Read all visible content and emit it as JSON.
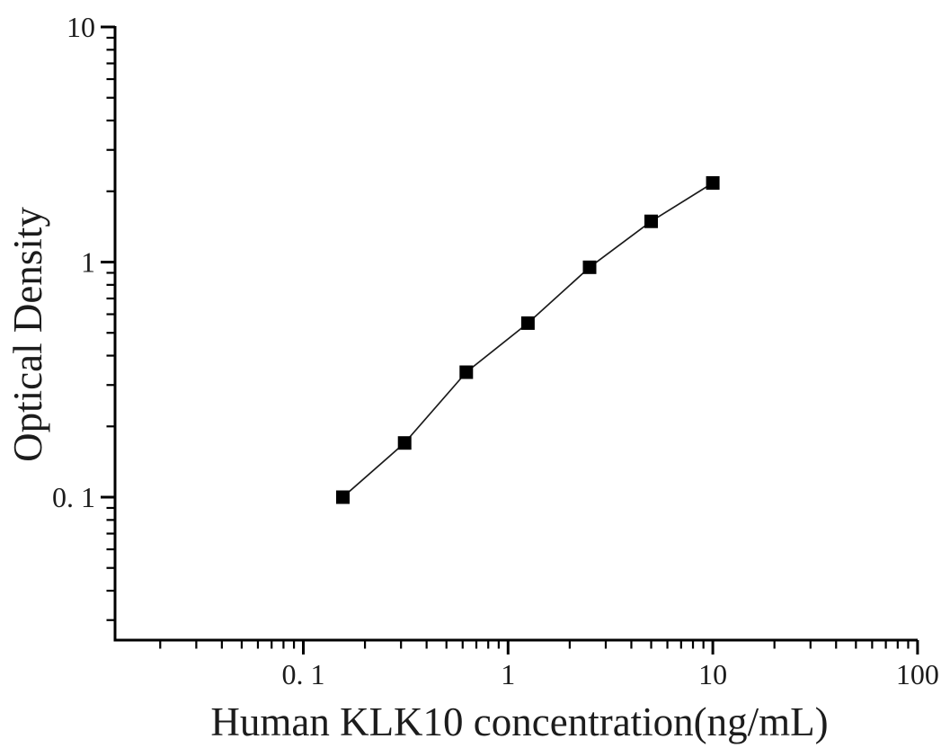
{
  "chart_data": {
    "type": "line",
    "title": "",
    "xlabel": "Human KLK10 concentration(ng/mL)",
    "ylabel": "Optical Density",
    "x_scale": "log",
    "y_scale": "log",
    "xlim": [
      0.012,
      100
    ],
    "ylim": [
      0.0245,
      10
    ],
    "grid": false,
    "legend": "none",
    "marker": "filled-square",
    "points": [
      {
        "x": 0.156,
        "y": 0.1
      },
      {
        "x": 0.3125,
        "y": 0.17
      },
      {
        "x": 0.625,
        "y": 0.34
      },
      {
        "x": 1.25,
        "y": 0.55
      },
      {
        "x": 2.5,
        "y": 0.95
      },
      {
        "x": 5,
        "y": 1.49
      },
      {
        "x": 10,
        "y": 2.17
      }
    ],
    "x_ticks": {
      "values": [
        0.1,
        1,
        10,
        100
      ],
      "labels": [
        "0. 1",
        "1",
        "10",
        "100"
      ]
    },
    "y_ticks": {
      "values": [
        0.1,
        1,
        10
      ],
      "labels": [
        "0. 1",
        "1",
        "10"
      ]
    },
    "colors": {
      "axis": "#000000",
      "line": "#1a1a1a",
      "marker": "#000000",
      "text": "#1c1c1c",
      "background": "#ffffff"
    }
  }
}
